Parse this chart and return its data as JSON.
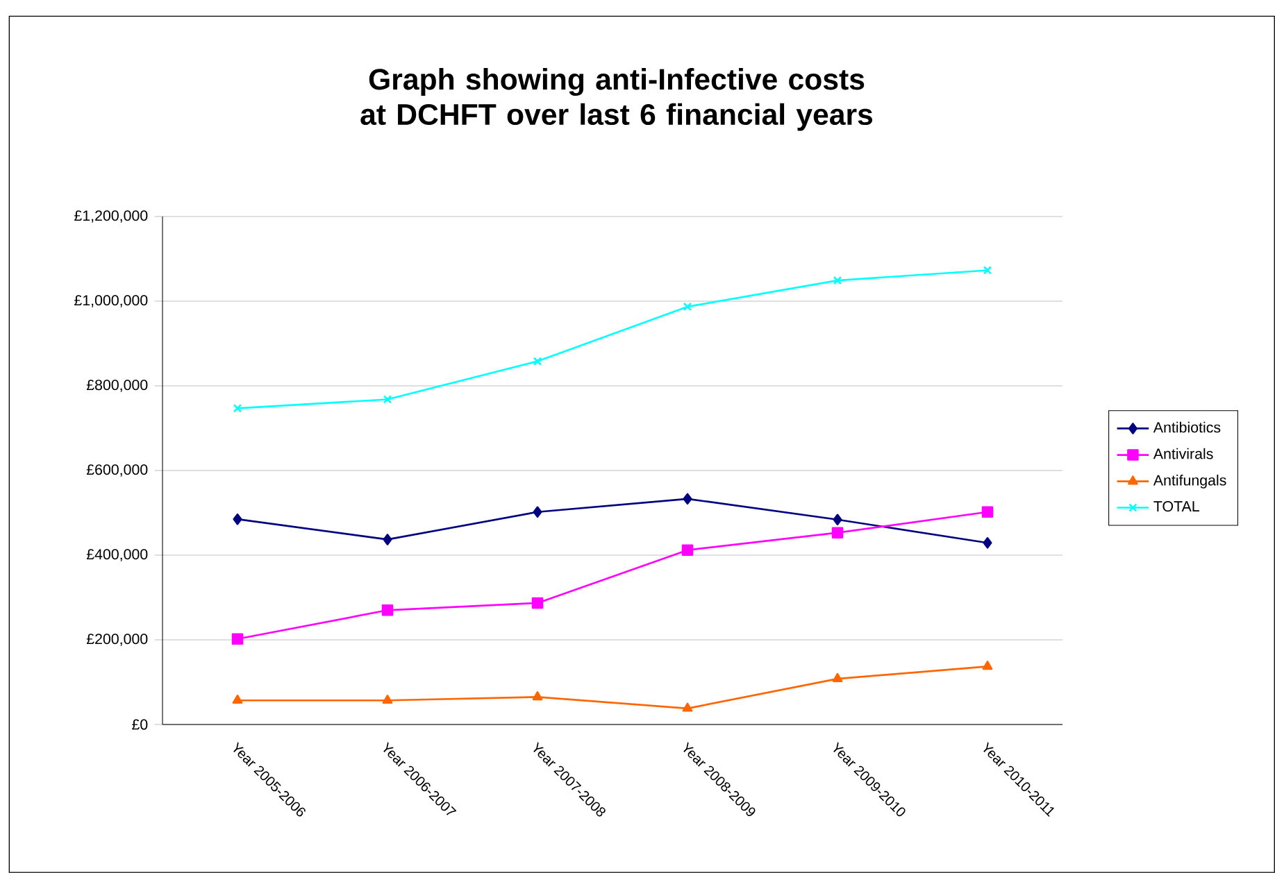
{
  "chart_data": {
    "type": "line",
    "title": "Graph showing anti-Infective costs at DCHFT over last 6 financial years",
    "categories": [
      "Year 2005-2006",
      "Year 2006-2007",
      "Year 2007-2008",
      "Year 2008-2009",
      "Year 2009-2010",
      "Year 2010-2011"
    ],
    "series": [
      {
        "name": "Antibiotics",
        "color": "#000080",
        "marker": "diamond",
        "values": [
          485000,
          437000,
          502000,
          533000,
          484000,
          429000
        ]
      },
      {
        "name": "Antivirals",
        "color": "#ff00ff",
        "marker": "square",
        "values": [
          202000,
          270000,
          287000,
          412000,
          453000,
          502000
        ]
      },
      {
        "name": "Antifungals",
        "color": "#ff6600",
        "marker": "triangle",
        "values": [
          57000,
          57000,
          65000,
          38000,
          108000,
          137000
        ]
      },
      {
        "name": "TOTAL",
        "color": "#00ffff",
        "marker": "cross",
        "values": [
          747000,
          768000,
          858000,
          987000,
          1049000,
          1073000
        ]
      }
    ],
    "ylim": [
      0,
      1200000
    ],
    "yticks": [
      {
        "value": 0,
        "label": "£0"
      },
      {
        "value": 200000,
        "label": "£200,000"
      },
      {
        "value": 400000,
        "label": "£400,000"
      },
      {
        "value": 600000,
        "label": "£600,000"
      },
      {
        "value": 800000,
        "label": "£800,000"
      },
      {
        "value": 1000000,
        "label": "£1,000,000"
      },
      {
        "value": 1200000,
        "label": "£1,200,000"
      }
    ],
    "grid": "y",
    "legend": "right",
    "line_style": "solid"
  }
}
